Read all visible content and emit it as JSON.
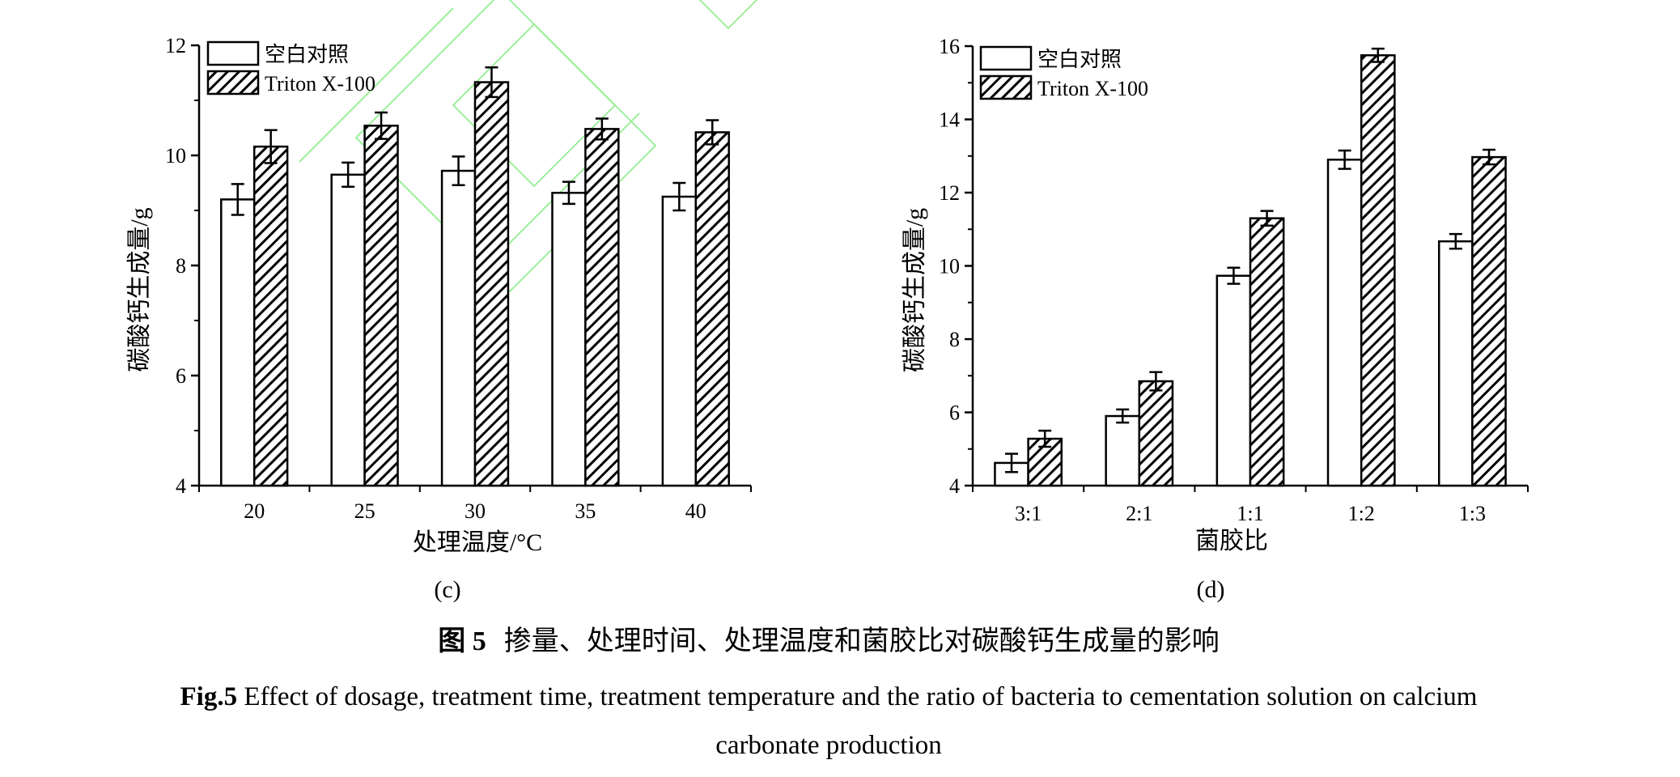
{
  "colors": {
    "axis": "#000000",
    "blank_fill": "#ffffff",
    "hatch": "#000000",
    "watermark": "#4be34b"
  },
  "chart_data": [
    {
      "panel": "(c)",
      "type": "bar",
      "xlabel": "处理温度/°C",
      "ylabel": "碳酸钙生成量/g",
      "categories": [
        "20",
        "25",
        "30",
        "35",
        "40"
      ],
      "ylim": [
        4,
        12
      ],
      "yticks": [
        4,
        6,
        8,
        10,
        12
      ],
      "legend_position": "top-left",
      "series": [
        {
          "name": "空白对照",
          "pattern": "solid-white",
          "values": [
            9.2,
            9.65,
            9.72,
            9.32,
            9.25
          ],
          "errors": [
            0.28,
            0.22,
            0.26,
            0.2,
            0.25
          ]
        },
        {
          "name": "Triton X-100",
          "pattern": "diagonal-hatch",
          "values": [
            10.16,
            10.54,
            11.33,
            10.48,
            10.42
          ],
          "errors": [
            0.3,
            0.24,
            0.27,
            0.19,
            0.22
          ]
        }
      ]
    },
    {
      "panel": "(d)",
      "type": "bar",
      "xlabel": "菌胶比",
      "ylabel": "碳酸钙生成量/g",
      "categories": [
        "3:1",
        "2:1",
        "1:1",
        "1:2",
        "1:3"
      ],
      "ylim": [
        4,
        16
      ],
      "yticks": [
        4,
        6,
        8,
        10,
        12,
        14,
        16
      ],
      "legend_position": "top-left",
      "series": [
        {
          "name": "空白对照",
          "pattern": "solid-white",
          "values": [
            4.62,
            5.9,
            9.73,
            12.9,
            10.67
          ],
          "errors": [
            0.25,
            0.18,
            0.22,
            0.25,
            0.2
          ]
        },
        {
          "name": "Triton X-100",
          "pattern": "diagonal-hatch",
          "values": [
            5.28,
            6.85,
            11.3,
            15.75,
            12.97
          ],
          "errors": [
            0.22,
            0.25,
            0.2,
            0.18,
            0.2
          ]
        }
      ]
    }
  ],
  "caption": {
    "cn_label": "图 5",
    "cn_text": "掺量、处理时间、处理温度和菌胶比对碳酸钙生成量的影响",
    "en_label": "Fig.5",
    "en_text_line1": " Effect of dosage, treatment time, treatment temperature and the ratio of bacteria to cementation solution on calcium",
    "en_text_line2": "carbonate production"
  }
}
